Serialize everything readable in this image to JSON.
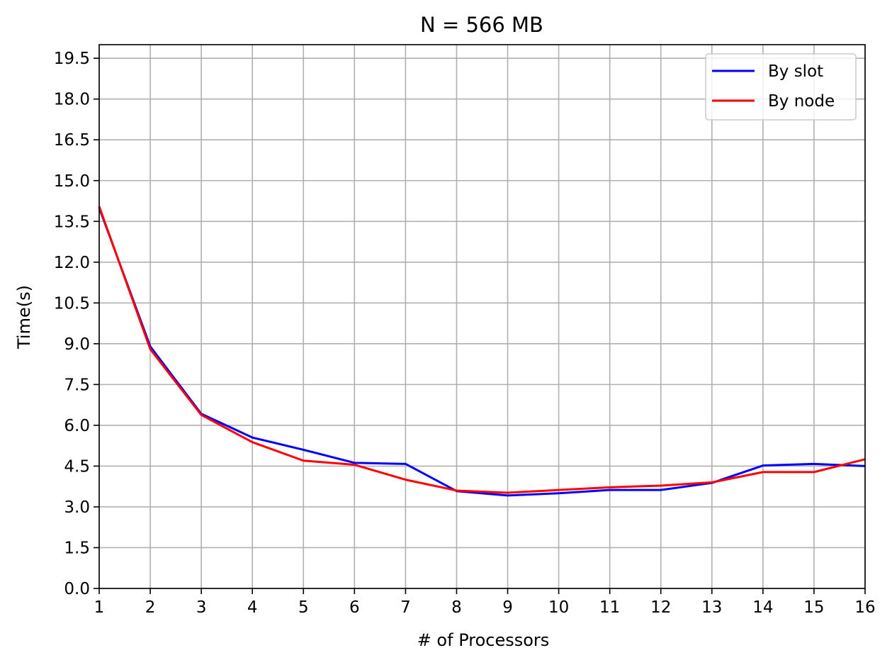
{
  "chart_data": {
    "type": "line",
    "title": "N = 566 MB",
    "xlabel": "# of Processors",
    "ylabel": "Time(s)",
    "xlim": [
      1,
      16
    ],
    "ylim": [
      0,
      20
    ],
    "xticks": [
      1,
      2,
      3,
      4,
      5,
      6,
      7,
      8,
      9,
      10,
      11,
      12,
      13,
      14,
      15,
      16
    ],
    "xtick_labels": [
      "1",
      "2",
      "3",
      "4",
      "5",
      "6",
      "7",
      "8",
      "9",
      "10",
      "11",
      "12",
      "13",
      "14",
      "15",
      "16"
    ],
    "yticks": [
      0.0,
      1.5,
      3.0,
      4.5,
      6.0,
      7.5,
      9.0,
      10.5,
      12.0,
      13.5,
      15.0,
      16.5,
      18.0,
      19.5
    ],
    "ytick_labels": [
      "0.0",
      "1.5",
      "3.0",
      "4.5",
      "6.0",
      "7.5",
      "9.0",
      "10.5",
      "12.0",
      "13.5",
      "15.0",
      "16.5",
      "18.0",
      "19.5"
    ],
    "grid": true,
    "legend_position": "top-right",
    "x": [
      1,
      2,
      3,
      4,
      5,
      6,
      7,
      8,
      9,
      10,
      11,
      12,
      13,
      14,
      15,
      16
    ],
    "series": [
      {
        "name": "By slot",
        "color": "#0000ff",
        "values": [
          14.0,
          8.9,
          6.42,
          5.55,
          5.1,
          4.62,
          4.58,
          3.58,
          3.42,
          3.5,
          3.62,
          3.62,
          3.88,
          4.52,
          4.58,
          4.5
        ]
      },
      {
        "name": "By node",
        "color": "#ff0000",
        "values": [
          14.05,
          8.8,
          6.38,
          5.38,
          4.7,
          4.55,
          4.0,
          3.6,
          3.52,
          3.62,
          3.72,
          3.78,
          3.9,
          4.28,
          4.28,
          4.75
        ]
      }
    ]
  }
}
